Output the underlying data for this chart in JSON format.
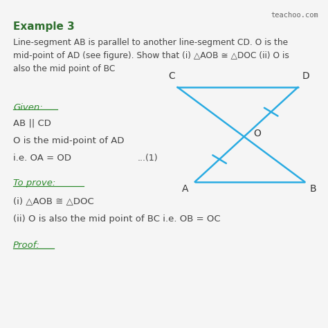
{
  "bg_color": "#f5f5f5",
  "title": "Example 3",
  "title_color": "#2d6e2d",
  "body_text": "Line-segment AB is parallel to another line-segment CD. O is the\nmid-point of AD (see figure). Show that (i) △AOB ≅ △DOC (ii) O is\nalso the mid point of BC",
  "body_color": "#444444",
  "given_label": "Given:",
  "given_color": "#2d8a2d",
  "given_lines": [
    "AB || CD",
    "O is the mid-point of AD",
    "i.e. OA = OD"
  ],
  "given_note": "...(1)",
  "to_prove_label": "To prove:",
  "to_prove_lines": [
    "(i) △AOB ≅ △DOC",
    "(ii) O is also the mid point of BC i.e. OB = OC"
  ],
  "proof_label": "Proof:",
  "diagram_color": "#29abe2",
  "watermark": "teachoo.com",
  "watermark_color": "#666666"
}
